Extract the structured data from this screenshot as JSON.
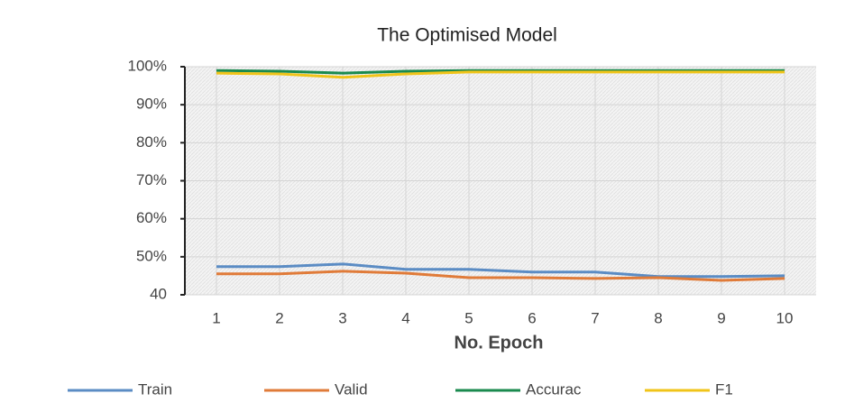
{
  "chart_data": {
    "type": "line",
    "title": "The Optimised Model",
    "x_label": "No. Epoch",
    "categories": [
      "1",
      "2",
      "3",
      "4",
      "5",
      "6",
      "7",
      "8",
      "9",
      "10"
    ],
    "series": [
      {
        "name": "Train",
        "color": "#5b8cc4",
        "values": [
          47.4,
          47.4,
          48.1,
          46.7,
          46.7,
          46,
          46,
          44.8,
          44.8,
          45
        ]
      },
      {
        "name": "Valid",
        "color": "#e07b39",
        "values": [
          45.5,
          45.5,
          46.2,
          45.7,
          44.5,
          44.5,
          44.3,
          44.5,
          43.8,
          44.3
        ]
      },
      {
        "name": "Accurac",
        "color": "#1a8a4e",
        "values": [
          99,
          98.8,
          98.3,
          98.8,
          99,
          99,
          99,
          99,
          99,
          99
        ]
      },
      {
        "name": "F1",
        "color": "#f0c419",
        "values": [
          98.3,
          98.1,
          97.2,
          98.1,
          98.6,
          98.6,
          98.6,
          98.6,
          98.6,
          98.6
        ]
      }
    ],
    "ylim": [
      40,
      100
    ],
    "yticks": [
      {
        "value": 40,
        "label": "40"
      },
      {
        "value": 50,
        "label": "50%"
      },
      {
        "value": 60,
        "label": "60%"
      },
      {
        "value": 70,
        "label": "70%"
      },
      {
        "value": 80,
        "label": "80%"
      },
      {
        "value": 90,
        "label": "90%"
      },
      {
        "value": 100,
        "label": "100%"
      }
    ],
    "grid": true
  }
}
